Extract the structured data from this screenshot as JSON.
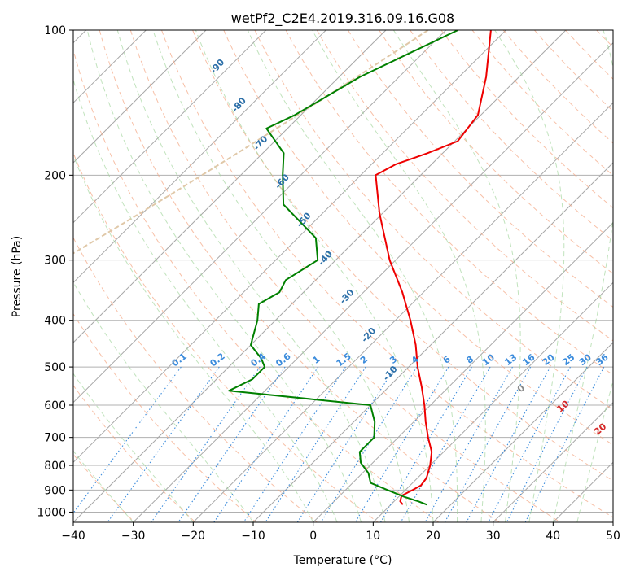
{
  "chart_data": {
    "type": "line",
    "subtype": "skew-t log-p diagram",
    "title": "wetPf2_C2E4.2019.316.09.16.G08",
    "xlabel": "Temperature (°C)",
    "ylabel": "Pressure (hPa)",
    "xlim": [
      -40,
      50
    ],
    "ylim": [
      1050,
      100
    ],
    "y_scale": "log",
    "x_ticks": [
      -40,
      -30,
      -20,
      -10,
      0,
      10,
      20,
      30,
      40,
      50
    ],
    "y_ticks": [
      100,
      200,
      300,
      400,
      500,
      600,
      700,
      800,
      900,
      1000
    ],
    "grid": true,
    "series": [
      {
        "name": "temperature",
        "color": "#ee0000",
        "points": [
          [
            100,
            -52.5
          ],
          [
            125,
            -45.5
          ],
          [
            150,
            -40.5
          ],
          [
            170,
            -39.5
          ],
          [
            180,
            -42.5
          ],
          [
            190,
            -46
          ],
          [
            200,
            -47.5
          ],
          [
            240,
            -40.5
          ],
          [
            300,
            -31
          ],
          [
            350,
            -23.5
          ],
          [
            400,
            -17.5
          ],
          [
            450,
            -12.5
          ],
          [
            500,
            -8.5
          ],
          [
            550,
            -4.5
          ],
          [
            600,
            -1
          ],
          [
            650,
            2
          ],
          [
            700,
            5
          ],
          [
            750,
            8
          ],
          [
            800,
            10
          ],
          [
            850,
            11.5
          ],
          [
            880,
            11.8
          ],
          [
            900,
            11.2
          ],
          [
            925,
            10.3
          ],
          [
            950,
            11
          ],
          [
            965,
            12
          ]
        ]
      },
      {
        "name": "dewpoint",
        "color": "#008000",
        "points": [
          [
            100,
            -58
          ],
          [
            125,
            -66.5
          ],
          [
            150,
            -71
          ],
          [
            160,
            -73.5
          ],
          [
            180,
            -66.5
          ],
          [
            200,
            -63
          ],
          [
            230,
            -58
          ],
          [
            270,
            -47
          ],
          [
            300,
            -43
          ],
          [
            330,
            -45
          ],
          [
            350,
            -44
          ],
          [
            370,
            -45.5
          ],
          [
            400,
            -43
          ],
          [
            450,
            -40
          ],
          [
            480,
            -36
          ],
          [
            500,
            -34
          ],
          [
            530,
            -34
          ],
          [
            560,
            -36
          ],
          [
            600,
            -10
          ],
          [
            650,
            -6.5
          ],
          [
            700,
            -4
          ],
          [
            750,
            -4
          ],
          [
            790,
            -2
          ],
          [
            830,
            1
          ],
          [
            870,
            3
          ],
          [
            900,
            7
          ],
          [
            930,
            11
          ],
          [
            950,
            14
          ],
          [
            965,
            16
          ]
        ]
      }
    ],
    "dry_adiabats": [
      -100,
      -90,
      -80,
      -70,
      -60,
      -50,
      -40,
      -30,
      -20,
      -10,
      0,
      10,
      20,
      30,
      40
    ],
    "mixing_ratio_labels": [
      "0.1",
      "0.2",
      "0.4",
      "0.6",
      "1",
      "1.5",
      "2",
      "3",
      "4",
      "6",
      "8",
      "10",
      "13",
      "16",
      "20",
      "25",
      "30",
      "36"
    ],
    "mixing_ratio_values": [
      0.1,
      0.2,
      0.4,
      0.6,
      1,
      1.5,
      2,
      3,
      4,
      6,
      8,
      10,
      13,
      16,
      20,
      25,
      30,
      36
    ],
    "moist_adiabats": [
      -10,
      0,
      10,
      20,
      30,
      40
    ]
  }
}
